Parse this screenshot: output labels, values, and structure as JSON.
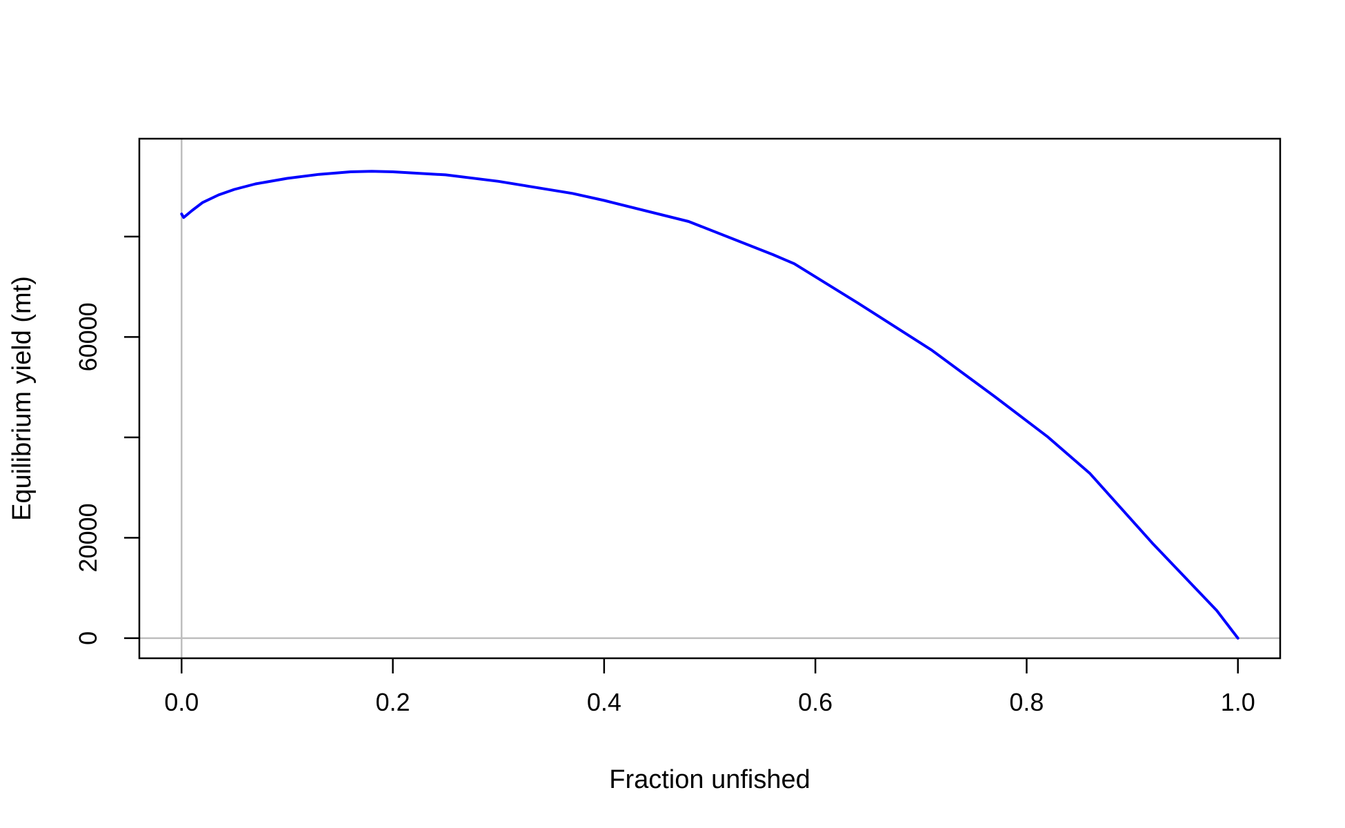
{
  "chart_data": {
    "type": "line",
    "title": "",
    "xlabel": "Fraction unfished",
    "ylabel": "Equilibrium yield (mt)",
    "xlim": [
      -0.04,
      1.04
    ],
    "ylim": [
      -4000,
      99500
    ],
    "x_ticks": [
      0.0,
      0.2,
      0.4,
      0.6,
      0.8,
      1.0
    ],
    "x_tick_labels": [
      "0.0",
      "0.2",
      "0.4",
      "0.6",
      "0.8",
      "1.0"
    ],
    "y_ticks": [
      0,
      20000,
      40000,
      60000,
      80000
    ],
    "y_tick_labels": [
      "0",
      "20000",
      "",
      "60000",
      ""
    ],
    "reference_lines": {
      "x": 0,
      "y": 0,
      "color": "#bebebe"
    },
    "grid": false,
    "series": [
      {
        "color": "#0000ff",
        "x": [
          0.0,
          0.002,
          0.01,
          0.02,
          0.035,
          0.05,
          0.07,
          0.1,
          0.13,
          0.16,
          0.18,
          0.2,
          0.25,
          0.3,
          0.37,
          0.4,
          0.48,
          0.56,
          0.58,
          0.64,
          0.71,
          0.77,
          0.82,
          0.86,
          0.92,
          0.98,
          1.0
        ],
        "y": [
          84500,
          83800,
          85200,
          86800,
          88300,
          89400,
          90500,
          91600,
          92400,
          92900,
          93000,
          92900,
          92300,
          91000,
          88600,
          87200,
          83000,
          76400,
          74600,
          66800,
          57400,
          48100,
          40100,
          32800,
          18700,
          5500,
          0
        ]
      }
    ]
  }
}
